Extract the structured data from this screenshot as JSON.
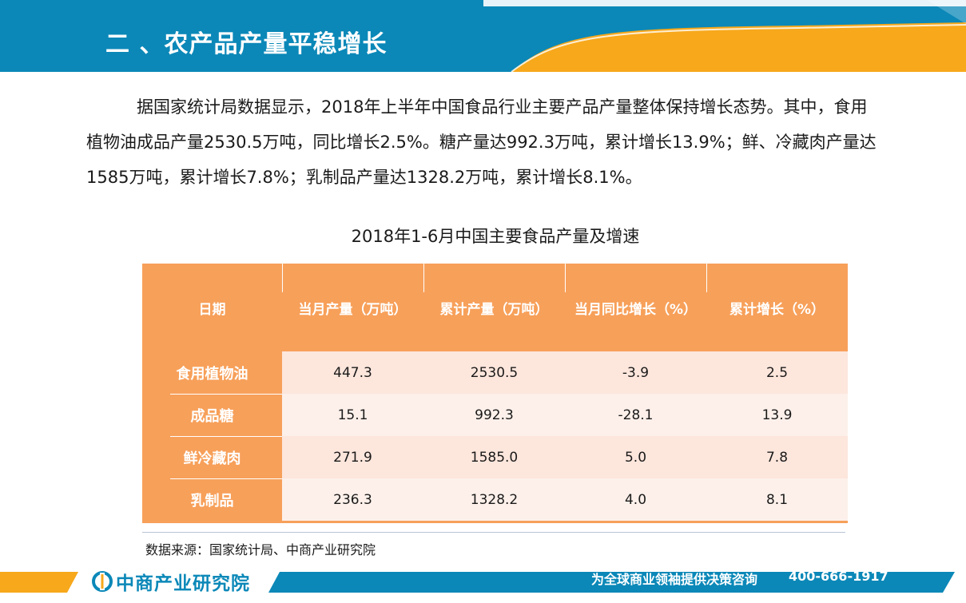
{
  "header": {
    "title": "二 、农产品产量平稳增长"
  },
  "intro": {
    "text": "据国家统计局数据显示，2018年上半年中国食品行业主要产品产量整体保持增长态势。其中，食用植物油成品产量2530.5万吨，同比增长2.5%。糖产量达992.3万吨，累计增长13.9%；鲜、冷藏肉产量达1585万吨，累计增长7.8%；乳制品产量达1328.2万吨，累计增长8.1%。"
  },
  "table": {
    "title": "2018年1-6月中国主要食品产量及增速",
    "headers": [
      "日期",
      "当月产量（万吨）",
      "累计产量（万吨）",
      "当月同比增长（%）",
      "累计增长（%）"
    ],
    "rows": [
      {
        "label": "食用植物油",
        "values": [
          "447.3",
          "2530.5",
          "-3.9",
          "2.5"
        ]
      },
      {
        "label": "成品糖",
        "values": [
          "15.1",
          "992.3",
          "-28.1",
          "13.9"
        ]
      },
      {
        "label": "鲜冷藏肉",
        "values": [
          "271.9",
          "1585.0",
          "5.0",
          "7.8"
        ]
      },
      {
        "label": "乳制品",
        "values": [
          "236.3",
          "1328.2",
          "4.0",
          "8.1"
        ]
      }
    ],
    "source": "数据来源：国家统计局、中商产业研究院"
  },
  "footer": {
    "logo_text": "中商产业研究院",
    "slogan": "为全球商业领袖提供决策咨询",
    "phone": "400-666-1917"
  },
  "colors": {
    "banner_blue": "#0b88b8",
    "banner_orange": "#f7a81b",
    "table_orange": "#f7a05a",
    "row_light_a": "#fde6dc",
    "row_light_b": "#fdf0ea"
  }
}
